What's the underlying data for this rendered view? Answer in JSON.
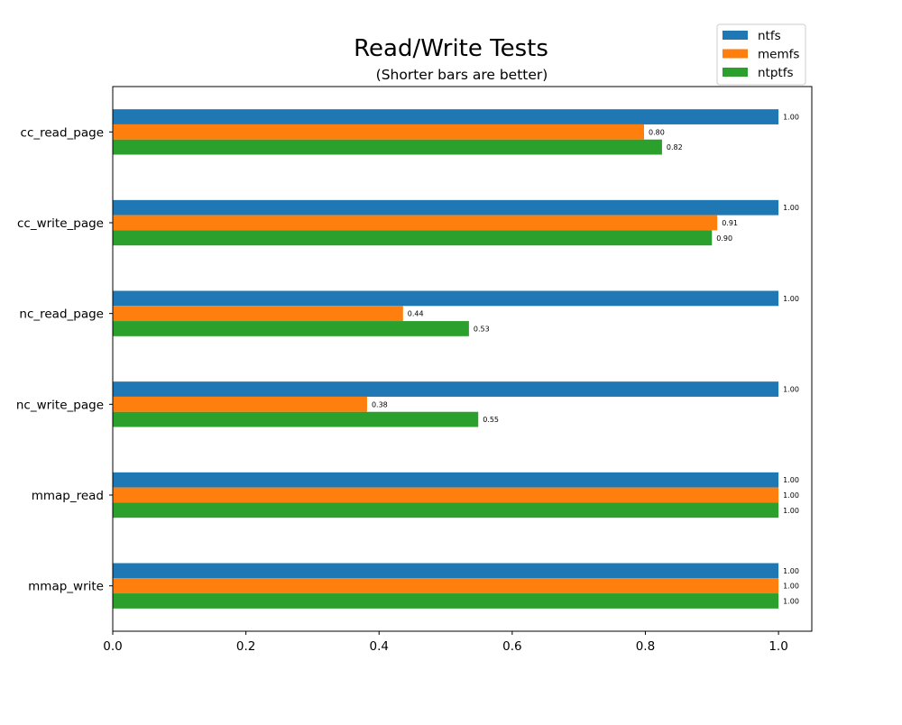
{
  "chart_data": {
    "type": "bar",
    "orientation": "horizontal",
    "title": "Read/Write Tests",
    "subtitle": "(Shorter bars are better)",
    "xlabel": "",
    "ylabel": "",
    "xlim": [
      0,
      1.05
    ],
    "xticks": [
      "0.0",
      "0.2",
      "0.4",
      "0.6",
      "0.8",
      "1.0"
    ],
    "grid": false,
    "legend_placement": "top-right",
    "categories": [
      "cc_read_page",
      "cc_write_page",
      "nc_read_page",
      "nc_write_page",
      "mmap_read",
      "mmap_write"
    ],
    "series": [
      {
        "name": "ntfs",
        "color": "#1f77b4",
        "values": [
          1.0,
          1.0,
          1.0,
          1.0,
          1.0,
          1.0
        ],
        "labels": [
          "1.00",
          "1.00",
          "1.00",
          "1.00",
          "1.00",
          "1.00"
        ]
      },
      {
        "name": "memfs",
        "color": "#ff7f0e",
        "values": [
          0.798,
          0.908,
          0.436,
          0.382,
          1.0,
          1.0
        ],
        "labels": [
          "0.80",
          "0.91",
          "0.44",
          "0.38",
          "1.00",
          "1.00"
        ]
      },
      {
        "name": "ntptfs",
        "color": "#2ca02c",
        "values": [
          0.825,
          0.9,
          0.535,
          0.549,
          1.0,
          1.0
        ],
        "labels": [
          "0.82",
          "0.90",
          "0.53",
          "0.55",
          "1.00",
          "1.00"
        ]
      }
    ]
  }
}
